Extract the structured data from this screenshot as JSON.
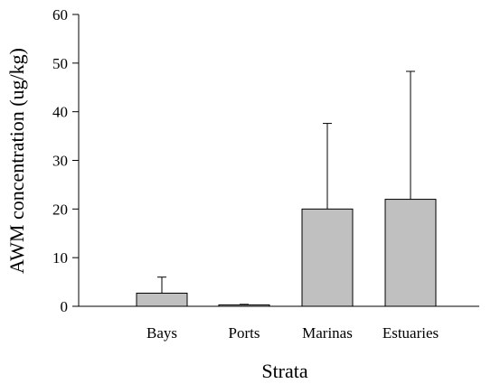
{
  "chart_data": {
    "type": "bar",
    "title": "",
    "xlabel": "Strata",
    "ylabel": "AWM concentration (ug/kg)",
    "categories": [
      "Bays",
      "Ports",
      "Marinas",
      "Estuaries"
    ],
    "values": [
      2.7,
      0.3,
      20.0,
      22.0
    ],
    "error_upper": [
      6.0,
      0.4,
      37.6,
      48.3
    ],
    "ylim": [
      0,
      60
    ],
    "yticks": [
      0,
      10,
      20,
      30,
      40,
      50,
      60
    ],
    "grid": false,
    "legend": "none",
    "bar_color": "#c0c0c0"
  }
}
